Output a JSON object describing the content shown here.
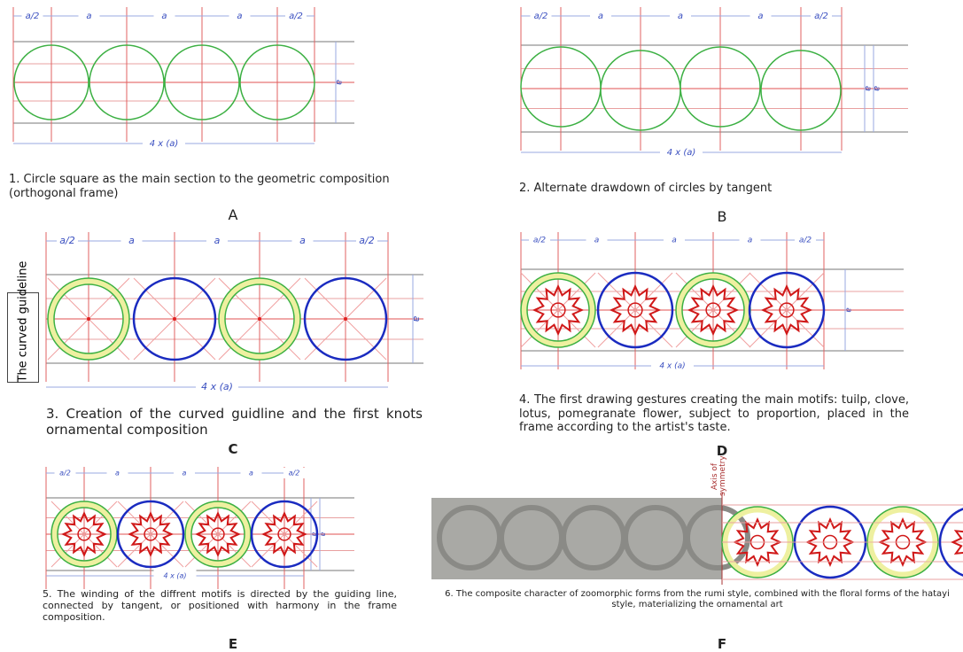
{
  "panels": [
    {
      "label": "A",
      "caption": "1. Circle square as the main section to the geometric composition (orthogonal frame)",
      "dims": [
        "a/2",
        "a",
        "a",
        "a",
        "a/2"
      ],
      "total": "4 x (a)",
      "side": [
        "a"
      ]
    },
    {
      "label": "B",
      "caption": "2. Alternate drawdown of circles by tangent",
      "dims": [
        "a/2",
        "a",
        "a",
        "a",
        "a/2"
      ],
      "total": "4 x (a)",
      "side": [
        "a",
        "a"
      ]
    },
    {
      "label": "C",
      "caption": "3. Creation of the curved guidline and the first knots ornamental composition",
      "dims": [
        "a/2",
        "a",
        "a",
        "a",
        "a/2"
      ],
      "total": "4 x (a)",
      "side": [
        "a"
      ],
      "note": "The curved guideline"
    },
    {
      "label": "D",
      "caption": "4. The first drawing gestures creating the main motifs: tuilp, clove, lotus, pomegranate flower, subject to proportion, placed in the frame according to the artist's taste.",
      "dims": [
        "a/2",
        "a",
        "a",
        "a",
        "a/2"
      ],
      "total": "4 x (a)",
      "side": [
        "a"
      ]
    },
    {
      "label": "E",
      "caption": "5. The winding of the diffrent motifs is directed by the guiding line, connected by tangent, or positioned with harmony in the frame composition.",
      "dims": [
        "a/2",
        "a",
        "a",
        "a",
        "a/2"
      ],
      "total": "4 x (a)",
      "side": [
        "a",
        "a"
      ]
    },
    {
      "label": "F",
      "caption": "6. The composite character of zoomorphic forms from the rumi style, combined with the floral forms of the hatayi style, materializing the ornamental art",
      "note": "Axis of symmetry"
    }
  ]
}
